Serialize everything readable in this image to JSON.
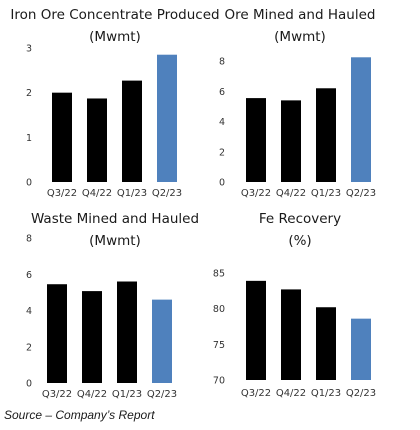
{
  "chart_data": [
    {
      "type": "bar",
      "title": [
        "Iron Ore Concentrate Produced",
        "(Mwmt)"
      ],
      "categories": [
        "Q3/22",
        "Q4/22",
        "Q1/23",
        "Q2/23"
      ],
      "values": [
        2.0,
        1.87,
        2.27,
        2.85
      ],
      "ylim": [
        0,
        3
      ],
      "yticks": [
        0,
        1,
        2,
        3
      ],
      "grid": false,
      "bar_colors": [
        "#000000",
        "#000000",
        "#000000",
        "#4f81bd"
      ]
    },
    {
      "type": "bar",
      "title": [
        "Ore Mined and Hauled",
        "(Mwmt)"
      ],
      "categories": [
        "Q3/22",
        "Q4/22",
        "Q1/23",
        "Q2/23"
      ],
      "values": [
        5.55,
        5.4,
        6.2,
        8.25
      ],
      "ylim": [
        0,
        8.6
      ],
      "yticks": [
        0,
        2,
        4,
        6,
        8
      ],
      "grid": false,
      "bar_colors": [
        "#000000",
        "#000000",
        "#000000",
        "#4f81bd"
      ]
    },
    {
      "type": "bar",
      "title": [
        "Waste Mined and Hauled",
        "(Mwmt)"
      ],
      "categories": [
        "Q3/22",
        "Q4/22",
        "Q1/23",
        "Q2/23"
      ],
      "values": [
        5.45,
        5.07,
        5.6,
        4.6
      ],
      "ylim": [
        0,
        8
      ],
      "yticks": [
        0,
        2,
        4,
        6,
        8
      ],
      "grid": false,
      "bar_colors": [
        "#000000",
        "#000000",
        "#000000",
        "#4f81bd"
      ]
    },
    {
      "type": "bar",
      "title": [
        "Fe Recovery",
        "(%)"
      ],
      "categories": [
        "Q3/22",
        "Q4/22",
        "Q1/23",
        "Q2/23"
      ],
      "values": [
        83.9,
        82.7,
        80.2,
        78.6
      ],
      "ylim": [
        70,
        85
      ],
      "yticks": [
        70,
        75,
        80,
        85
      ],
      "grid": false,
      "bar_colors": [
        "#000000",
        "#000000",
        "#000000",
        "#4f81bd"
      ]
    }
  ],
  "source": "Source – Company’s Report"
}
